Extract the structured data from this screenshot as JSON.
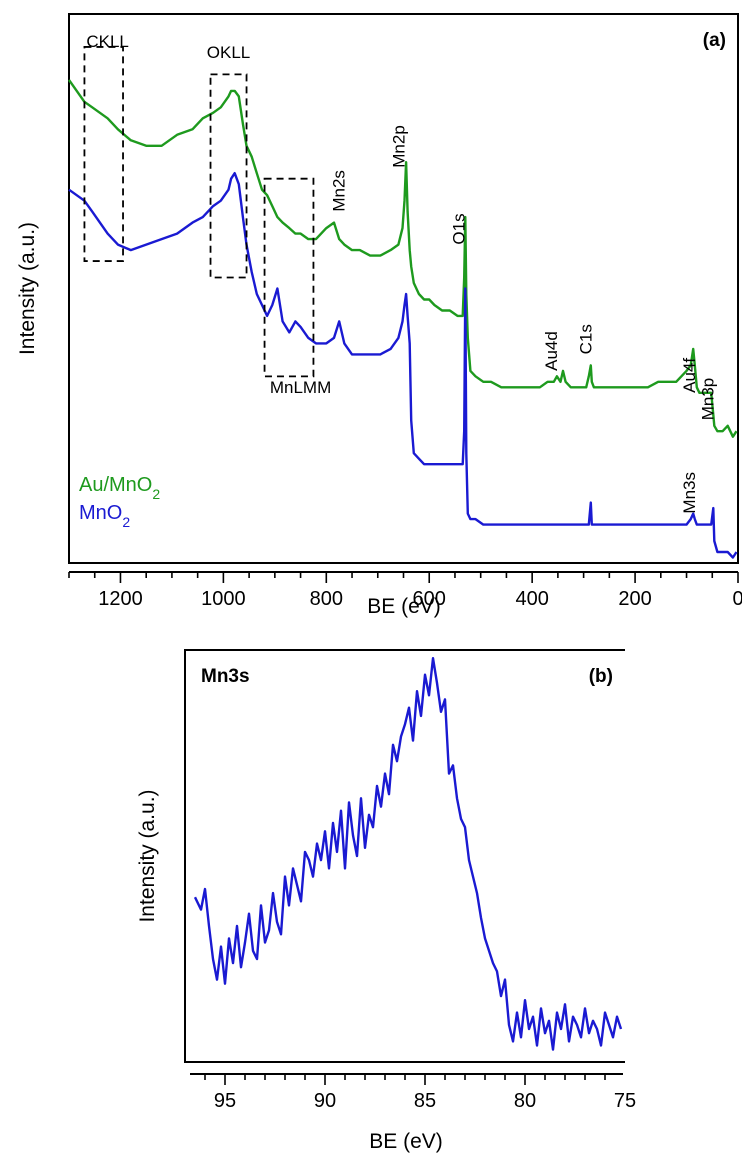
{
  "colors": {
    "green": "#1e9a1e",
    "blue": "#1a1ad2",
    "axis": "#000000"
  },
  "chart_data": [
    {
      "type": "line",
      "panel_label": "(a)",
      "xlabel": "BE (eV)",
      "ylabel": "Intensity (a.u.)",
      "xlim": [
        1300,
        0
      ],
      "x_reversed": true,
      "ylim": [
        0,
        100
      ],
      "y_ticks_shown": false,
      "x_ticks": [
        1200,
        1000,
        800,
        600,
        400,
        200,
        0
      ],
      "tick_labels": [
        "1200",
        "1000",
        "800",
        "600",
        "400",
        "200",
        "0"
      ],
      "legend": [
        {
          "name": "Au/MnO",
          "sub": "2",
          "color": "#1e9a1e"
        },
        {
          "name": "MnO",
          "sub": "2",
          "color": "#1a1ad2"
        }
      ],
      "annotations": [
        {
          "text": "CKLL",
          "x": 1225,
          "y": 94,
          "rotate": false
        },
        {
          "text": "OKLL",
          "x": 990,
          "y": 92,
          "rotate": false
        },
        {
          "text": "Mn2s",
          "x": 765,
          "y": 64,
          "rotate": true
        },
        {
          "text": "Mn2p",
          "x": 648,
          "y": 72,
          "rotate": true
        },
        {
          "text": "MnLMM",
          "x": 850,
          "y": 31,
          "rotate": false
        },
        {
          "text": "O1s",
          "x": 531,
          "y": 58,
          "rotate": true
        },
        {
          "text": "Au4d",
          "x": 352,
          "y": 35,
          "rotate": true
        },
        {
          "text": "C1s",
          "x": 285,
          "y": 38,
          "rotate": true
        },
        {
          "text": "Au4f",
          "x": 84,
          "y": 31,
          "rotate": true
        },
        {
          "text": "Mn3p",
          "x": 48,
          "y": 26,
          "rotate": true
        },
        {
          "text": "Mn3s",
          "x": 84,
          "y": 9,
          "rotate": true
        }
      ],
      "regions": [
        {
          "label": "CKLL",
          "x": [
            1270,
            1195
          ],
          "y": [
            55,
            94
          ]
        },
        {
          "label": "OKLL",
          "x": [
            1025,
            955
          ],
          "y": [
            52,
            89
          ]
        },
        {
          "label": "MnLMM",
          "x": [
            920,
            825
          ],
          "y": [
            34,
            70
          ]
        }
      ],
      "series": [
        {
          "name": "Au/MnO2",
          "color": "#1e9a1e",
          "x": [
            1300,
            1270,
            1255,
            1240,
            1225,
            1205,
            1180,
            1150,
            1120,
            1090,
            1060,
            1040,
            1020,
            1005,
            990,
            985,
            978,
            970,
            962,
            955,
            945,
            935,
            925,
            915,
            905,
            895,
            885,
            872,
            860,
            850,
            835,
            820,
            800,
            785,
            775,
            765,
            750,
            735,
            715,
            695,
            675,
            660,
            652,
            648,
            645,
            642,
            638,
            635,
            630,
            620,
            610,
            600,
            590,
            575,
            560,
            545,
            535,
            532,
            530,
            528,
            525,
            520,
            510,
            495,
            480,
            460,
            440,
            420,
            400,
            385,
            370,
            358,
            352,
            345,
            340,
            335,
            325,
            310,
            295,
            290,
            286,
            284,
            280,
            270,
            255,
            235,
            215,
            195,
            175,
            155,
            135,
            120,
            110,
            100,
            92,
            87,
            84,
            80,
            75,
            70,
            60,
            52,
            48,
            46,
            40,
            30,
            20,
            10,
            3
          ],
          "y": [
            88,
            84,
            83,
            82,
            81,
            79,
            77,
            76,
            76,
            78,
            79,
            81,
            82,
            83,
            85,
            86,
            86,
            85,
            80,
            76,
            74,
            71,
            68,
            67,
            65,
            63,
            62,
            61,
            60,
            60,
            59,
            59,
            61,
            62,
            59,
            58,
            57,
            57,
            56,
            56,
            57,
            58,
            61,
            66,
            73,
            64,
            57,
            54,
            51,
            49,
            48,
            48,
            47,
            46,
            46,
            45,
            45,
            52,
            63,
            49,
            41,
            35,
            34,
            33,
            33,
            32,
            32,
            32,
            32,
            32,
            33,
            33,
            34,
            33,
            35,
            33,
            32,
            32,
            32,
            34,
            36,
            33,
            32,
            32,
            32,
            32,
            32,
            32,
            32,
            33,
            33,
            33,
            34,
            35,
            36,
            39,
            36,
            32,
            31,
            31,
            31,
            31,
            27,
            25,
            24,
            24,
            25,
            23,
            24
          ]
        },
        {
          "name": "MnO2",
          "color": "#1a1ad2",
          "x": [
            1300,
            1270,
            1255,
            1240,
            1225,
            1205,
            1180,
            1150,
            1120,
            1090,
            1060,
            1040,
            1020,
            1005,
            990,
            985,
            978,
            970,
            962,
            955,
            945,
            935,
            925,
            915,
            905,
            895,
            885,
            872,
            860,
            850,
            835,
            820,
            800,
            785,
            775,
            765,
            750,
            735,
            715,
            695,
            675,
            660,
            652,
            648,
            645,
            642,
            638,
            635,
            630,
            620,
            610,
            600,
            590,
            575,
            560,
            545,
            535,
            532,
            530,
            528,
            525,
            520,
            510,
            495,
            480,
            460,
            440,
            420,
            400,
            385,
            370,
            358,
            352,
            345,
            340,
            335,
            325,
            310,
            295,
            290,
            286,
            284,
            280,
            270,
            255,
            235,
            215,
            195,
            175,
            155,
            135,
            120,
            110,
            100,
            92,
            87,
            84,
            80,
            75,
            70,
            60,
            52,
            48,
            46,
            40,
            30,
            20,
            10,
            3
          ],
          "y": [
            68,
            66,
            64,
            62,
            60,
            58,
            57,
            58,
            59,
            60,
            62,
            63,
            65,
            66,
            68,
            70,
            71,
            69,
            63,
            58,
            53,
            49,
            47,
            45,
            47,
            50,
            44,
            42,
            44,
            43,
            41,
            40,
            40,
            41,
            44,
            40,
            38,
            38,
            38,
            38,
            39,
            41,
            44,
            47,
            49,
            45,
            40,
            26,
            20,
            19,
            18,
            18,
            18,
            18,
            18,
            18,
            18,
            24,
            50,
            20,
            9,
            8,
            8,
            7,
            7,
            7,
            7,
            7,
            7,
            7,
            7,
            7,
            7,
            7,
            7,
            7,
            7,
            7,
            7,
            7,
            11,
            7,
            7,
            7,
            7,
            7,
            7,
            7,
            7,
            7,
            7,
            7,
            7,
            7,
            8,
            9,
            8,
            7,
            7,
            7,
            7,
            7,
            10,
            4,
            2,
            2,
            2,
            1,
            2
          ]
        }
      ]
    },
    {
      "type": "line",
      "panel_label": "(b)",
      "title": "Mn3s",
      "xlabel": "BE (eV)",
      "ylabel": "Intensity (a.u.)",
      "xlim": [
        97,
        75
      ],
      "x_reversed": true,
      "ylim": [
        0,
        100
      ],
      "y_ticks_shown": false,
      "x_ticks": [
        95,
        90,
        85,
        80,
        75
      ],
      "tick_labels": [
        "95",
        "90",
        "85",
        "80",
        "75"
      ],
      "series": [
        {
          "name": "Mn3s",
          "color": "#1a1ad2",
          "x": [
            96.5,
            96.2,
            96.0,
            95.8,
            95.6,
            95.4,
            95.2,
            95.0,
            94.8,
            94.6,
            94.4,
            94.2,
            94.0,
            93.8,
            93.6,
            93.4,
            93.2,
            93.0,
            92.8,
            92.6,
            92.4,
            92.2,
            92.0,
            91.8,
            91.6,
            91.4,
            91.2,
            91.0,
            90.8,
            90.6,
            90.4,
            90.2,
            90.0,
            89.8,
            89.6,
            89.4,
            89.2,
            89.0,
            88.8,
            88.6,
            88.4,
            88.2,
            88.0,
            87.8,
            87.6,
            87.4,
            87.2,
            87.0,
            86.8,
            86.6,
            86.4,
            86.2,
            86.0,
            85.8,
            85.6,
            85.4,
            85.2,
            85.0,
            84.8,
            84.6,
            84.4,
            84.2,
            84.0,
            83.8,
            83.6,
            83.4,
            83.2,
            83.0,
            82.8,
            82.6,
            82.4,
            82.2,
            82.0,
            81.8,
            81.6,
            81.4,
            81.2,
            81.0,
            80.8,
            80.6,
            80.4,
            80.2,
            80.0,
            79.8,
            79.6,
            79.4,
            79.2,
            79.0,
            78.8,
            78.6,
            78.4,
            78.2,
            78.0,
            77.8,
            77.6,
            77.4,
            77.2,
            77.0,
            76.8,
            76.6,
            76.4,
            76.2,
            76.0,
            75.8,
            75.6,
            75.4,
            75.2
          ],
          "y": [
            40,
            37,
            42,
            33,
            25,
            20,
            28,
            19,
            30,
            24,
            33,
            23,
            29,
            36,
            27,
            25,
            38,
            29,
            32,
            41,
            34,
            31,
            45,
            38,
            47,
            43,
            39,
            51,
            49,
            45,
            53,
            49,
            56,
            47,
            58,
            51,
            61,
            47,
            63,
            55,
            50,
            64,
            52,
            60,
            57,
            67,
            62,
            70,
            65,
            77,
            73,
            79,
            82,
            86,
            78,
            90,
            84,
            94,
            89,
            98,
            92,
            85,
            88,
            70,
            72,
            64,
            59,
            57,
            49,
            45,
            41,
            35,
            30,
            27,
            24,
            22,
            16,
            20,
            9,
            5,
            12,
            6,
            15,
            8,
            11,
            4,
            13,
            7,
            10,
            3,
            12,
            8,
            14,
            5,
            11,
            9,
            6,
            13,
            7,
            10,
            8,
            4,
            12,
            9,
            6,
            11,
            8
          ]
        }
      ]
    }
  ]
}
